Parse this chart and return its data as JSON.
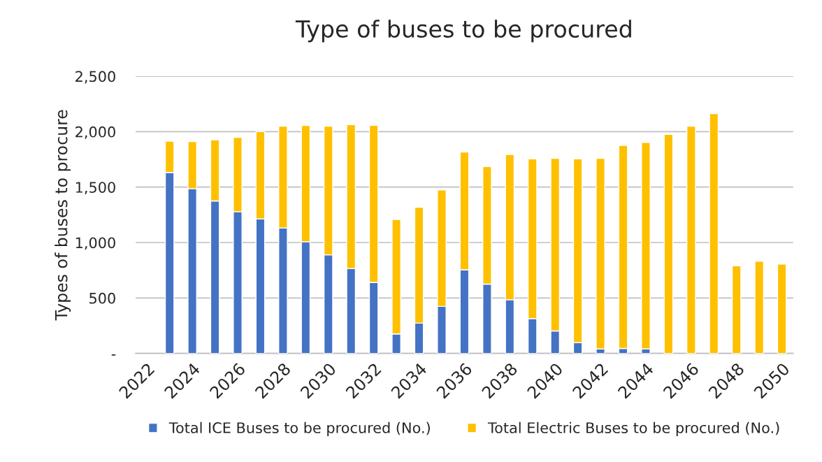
{
  "chart_data": {
    "type": "bar",
    "title": "Type of buses to be procured",
    "ylabel": "Types of buses to procure",
    "categories": [
      "2022",
      null,
      "2024",
      null,
      "2026",
      null,
      "2028",
      null,
      "2030",
      null,
      "2032",
      null,
      "2034",
      null,
      "2036",
      null,
      "2038",
      null,
      "2040",
      null,
      "2042",
      null,
      "2044",
      null,
      "2046",
      null,
      "2048",
      null,
      "2050"
    ],
    "stacked": true,
    "series": [
      {
        "name": "Total ICE Buses to be procured (No.)",
        "color": "#4472c4",
        "values": [
          null,
          1632,
          1486,
          1375,
          1278,
          1213,
          1132,
          1007,
          889,
          766,
          641,
          176,
          273,
          424,
          754,
          625,
          484,
          315,
          203,
          97,
          40,
          45,
          40,
          0,
          0,
          0,
          0,
          0,
          0
        ]
      },
      {
        "name": "Total Electric Buses to be procured (No.)",
        "color": "#ffc000",
        "values": [
          null,
          282,
          424,
          551,
          671,
          787,
          917,
          1049,
          1160,
          1297,
          1417,
          1032,
          1045,
          1050,
          1062,
          1060,
          1310,
          1439,
          1556,
          1657,
          1719,
          1831,
          1863,
          1975,
          2049,
          2163,
          791,
          831,
          806
        ]
      }
    ],
    "ylim": [
      0,
      2500
    ],
    "yticks": [
      {
        "value": 0,
        "label": "-"
      },
      {
        "value": 500,
        "label": "500"
      },
      {
        "value": 1000,
        "label": "1,000"
      },
      {
        "value": 1500,
        "label": "1,500"
      },
      {
        "value": 2000,
        "label": "2,000"
      },
      {
        "value": 2500,
        "label": "2,500"
      }
    ],
    "grid": "y",
    "legend": "bottom"
  }
}
